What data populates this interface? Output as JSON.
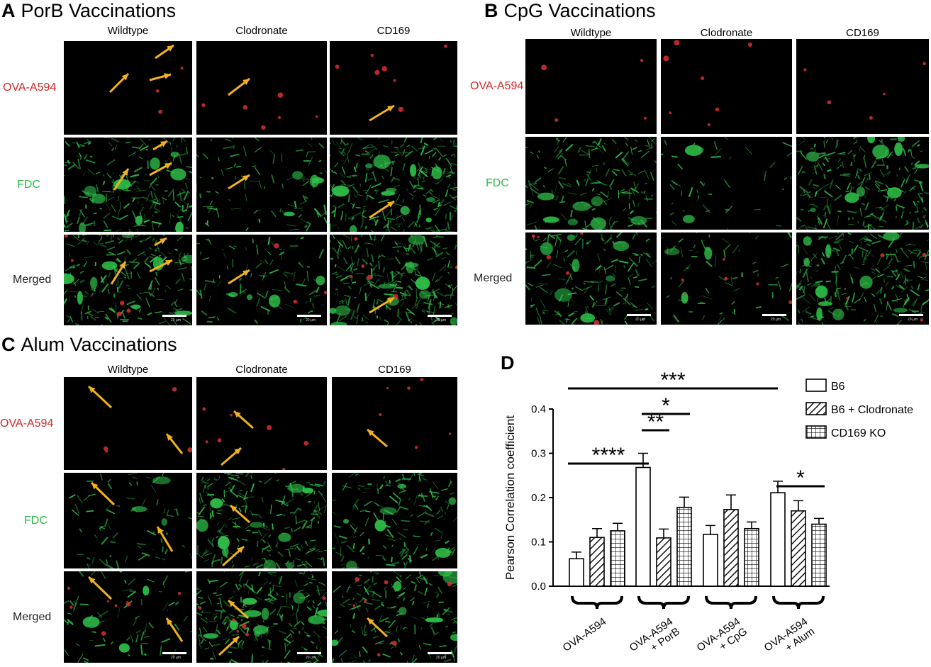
{
  "panels": {
    "A": {
      "letter": "A",
      "title": "PorB Vaccinations"
    },
    "B": {
      "letter": "B",
      "title": "CpG Vaccinations"
    },
    "C": {
      "letter": "C",
      "title": "Alum Vaccinations"
    },
    "D": {
      "letter": "D"
    }
  },
  "columns": [
    "Wildtype",
    "Clodronate",
    "CD169"
  ],
  "rows": [
    "OVA-A594",
    "FDC",
    "Merged"
  ],
  "colors": {
    "red_channel": "#d93030",
    "green_channel": "#2fc24a",
    "arrow": "#f2b21c"
  },
  "scale_label": "20 µm",
  "chart_data": {
    "type": "bar",
    "ylabel": "Pearson Correlation coefficient",
    "ylim": [
      0,
      0.4
    ],
    "yticks": [
      "0.0",
      "0.1",
      "0.2",
      "0.3",
      "0.4"
    ],
    "categories": [
      "OVA-A594",
      "OVA-A594 + PorB",
      "OVA-A594 + CpG",
      "OVA-A594 + Alum"
    ],
    "category_lines": [
      [
        "OVA-A594"
      ],
      [
        "OVA-A594",
        "+ PorB"
      ],
      [
        "OVA-A594",
        "+ CpG"
      ],
      [
        "OVA-A594",
        "+ Alum"
      ]
    ],
    "series": [
      {
        "name": "B6",
        "pattern": "open",
        "values": [
          0.062,
          0.268,
          0.117,
          0.211
        ],
        "errors": [
          0.015,
          0.032,
          0.02,
          0.026
        ]
      },
      {
        "name": "B6 + Clodronate",
        "pattern": "diagonal",
        "values": [
          0.11,
          0.109,
          0.173,
          0.17
        ],
        "errors": [
          0.02,
          0.02,
          0.033,
          0.023
        ]
      },
      {
        "name": "CD169 KO",
        "pattern": "grid",
        "values": [
          0.125,
          0.178,
          0.13,
          0.14
        ],
        "errors": [
          0.017,
          0.023,
          0.015,
          0.013
        ]
      }
    ],
    "significance": [
      {
        "label": "***",
        "from": [
          0,
          0
        ],
        "to": [
          3,
          0
        ]
      },
      {
        "label": "*",
        "from": [
          1,
          0
        ],
        "to": [
          1,
          2
        ]
      },
      {
        "label": "**",
        "from": [
          1,
          0
        ],
        "to": [
          1,
          1
        ]
      },
      {
        "label": "****",
        "from": [
          0,
          0
        ],
        "to": [
          1,
          0
        ]
      },
      {
        "label": "*",
        "from": [
          3,
          0
        ],
        "to": [
          3,
          2
        ]
      }
    ],
    "legend_position": "top-right"
  }
}
